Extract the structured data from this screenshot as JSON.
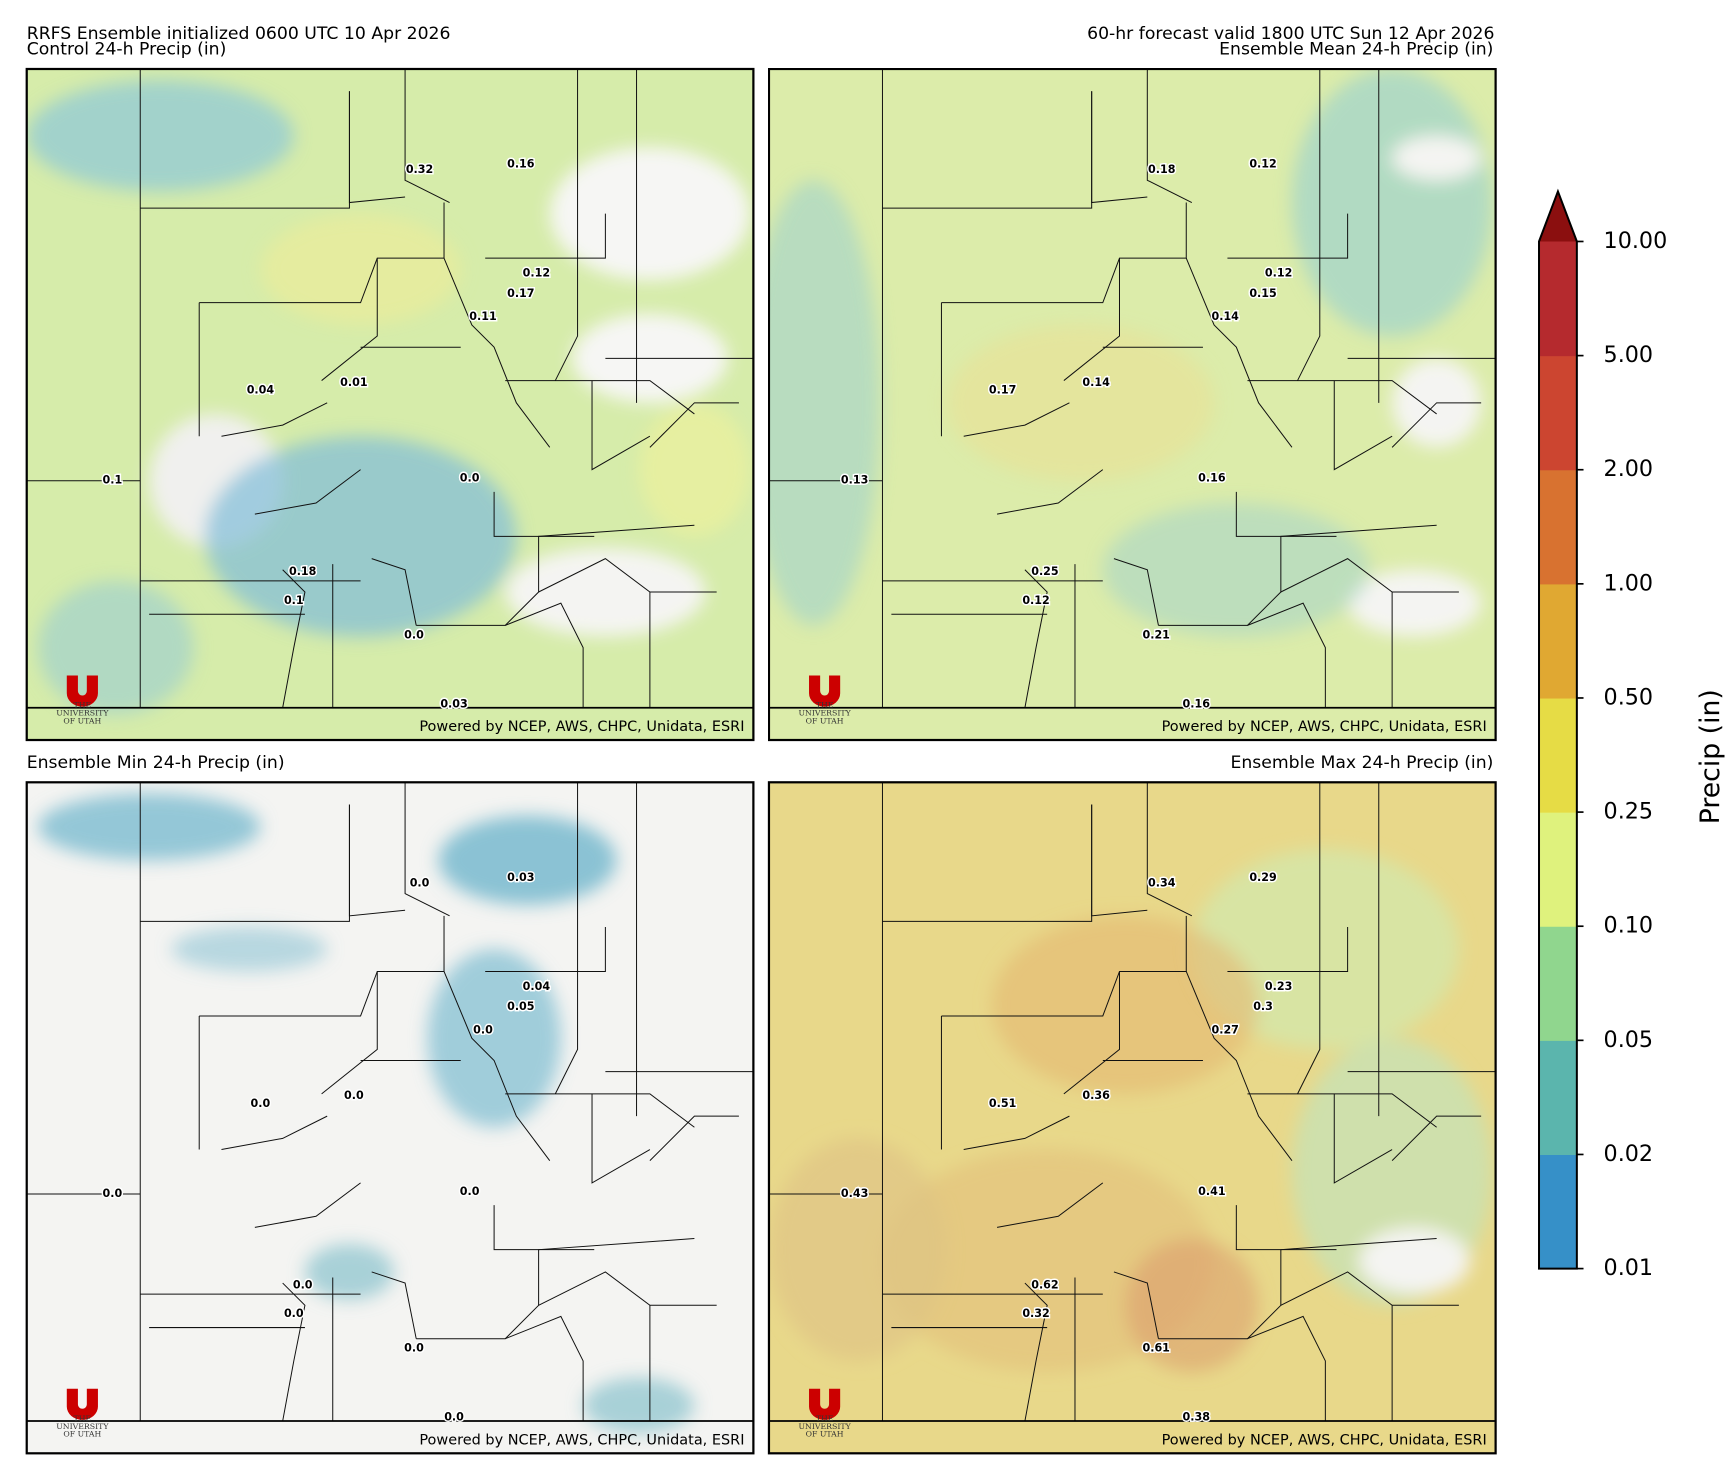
{
  "header": {
    "left_line1": "RRFS Ensemble initialized 0600 UTC 10 Apr 2026",
    "right_line1": "60-hr forecast valid 1800 UTC Sun 12 Apr 2026"
  },
  "panels": [
    {
      "title": "Control 24-h Precip (in)",
      "labels": [
        "0.32",
        "0.16",
        "0.12",
        "0.17",
        "0.11",
        "0.04",
        "0.01",
        "0.1",
        "0.0",
        "0.18",
        "0.1",
        "0.0",
        "0.03"
      ]
    },
    {
      "title": "Ensemble Mean 24-h Precip (in)",
      "labels": [
        "0.18",
        "0.12",
        "0.12",
        "0.15",
        "0.14",
        "0.17",
        "0.14",
        "0.13",
        "0.16",
        "0.25",
        "0.12",
        "0.21",
        "0.16"
      ]
    },
    {
      "title": "Ensemble Min 24-h Precip (in)",
      "labels": [
        "0.0",
        "0.03",
        "0.04",
        "0.05",
        "0.0",
        "0.0",
        "0.0",
        "0.0",
        "0.0",
        "0.0",
        "0.0",
        "0.0",
        "0.0"
      ]
    },
    {
      "title": "Ensemble Max 24-h Precip (in)",
      "labels": [
        "0.34",
        "0.29",
        "0.23",
        "0.3",
        "0.27",
        "0.51",
        "0.36",
        "0.43",
        "0.41",
        "0.62",
        "0.32",
        "0.61",
        "0.38"
      ]
    }
  ],
  "credit": "Powered by NCEP, AWS, CHPC, Unidata, ESRI",
  "logo": {
    "line1": "THE",
    "line2": "UNIVERSITY",
    "line3": "OF UTAH"
  },
  "colorbar": {
    "label": "Precip (in)",
    "ticks": [
      "0.01",
      "0.02",
      "0.05",
      "0.10",
      "0.25",
      "0.50",
      "1.00",
      "2.00",
      "5.00",
      "10.00"
    ],
    "colors": [
      "#3690c8",
      "#5bb5ad",
      "#90d68e",
      "#dff27d",
      "#e6dc45",
      "#e0a832",
      "#d87230",
      "#cc4530",
      "#b52a2e"
    ],
    "extend_color": "#8b0f0f"
  }
}
